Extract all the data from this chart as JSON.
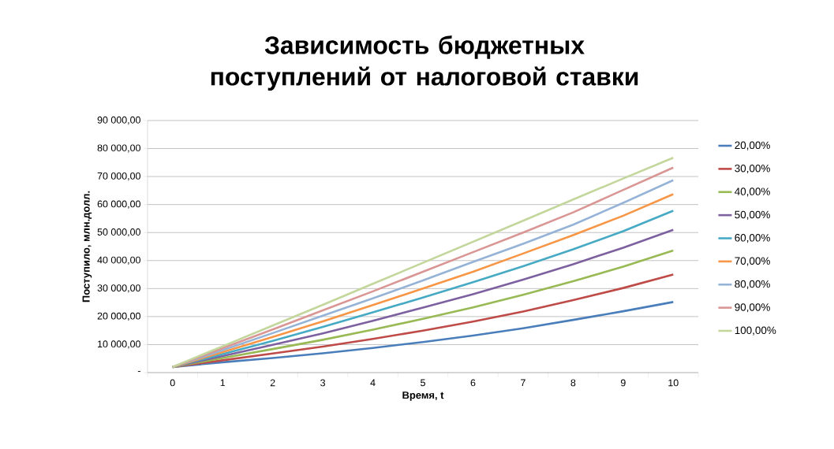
{
  "chart_data": {
    "type": "line",
    "title": "Зависимость бюджетных поступлений от налоговой ставки",
    "xlabel": "Время, t",
    "ylabel": "Поступило, млн.долл.",
    "categories": [
      "0",
      "1",
      "2",
      "3",
      "4",
      "5",
      "6",
      "7",
      "8",
      "9",
      "10"
    ],
    "ylim": [
      0,
      90000
    ],
    "yticks": [
      {
        "value": 0,
        "label": "-"
      },
      {
        "value": 10000,
        "label": "10 000,00"
      },
      {
        "value": 20000,
        "label": "20 000,00"
      },
      {
        "value": 30000,
        "label": "30 000,00"
      },
      {
        "value": 40000,
        "label": "40 000,00"
      },
      {
        "value": 50000,
        "label": "50 000,00"
      },
      {
        "value": 60000,
        "label": "60 000,00"
      },
      {
        "value": 70000,
        "label": "70 000,00"
      },
      {
        "value": 80000,
        "label": "80 000,00"
      },
      {
        "value": 90000,
        "label": "90 000,00"
      }
    ],
    "grid": "y",
    "legend": "right",
    "marker": "none",
    "line_style": "solid",
    "series": [
      {
        "name": "20,00%",
        "color": "#4a7ebb",
        "values": [
          2000,
          3700,
          5200,
          6900,
          8800,
          10900,
          13200,
          15800,
          18800,
          21900,
          25200
        ]
      },
      {
        "name": "30,00%",
        "color": "#be4b48",
        "values": [
          2000,
          4400,
          6800,
          9300,
          12000,
          15000,
          18200,
          21800,
          25900,
          30200,
          35000
        ]
      },
      {
        "name": "40,00%",
        "color": "#98b954",
        "values": [
          2000,
          5200,
          8400,
          11700,
          15300,
          19200,
          23300,
          27800,
          32600,
          37800,
          43600
        ]
      },
      {
        "name": "50,00%",
        "color": "#7d60a0",
        "values": [
          2000,
          5900,
          9900,
          14000,
          18500,
          23200,
          28000,
          33200,
          38700,
          44600,
          51000
        ]
      },
      {
        "name": "60,00%",
        "color": "#46aac5",
        "values": [
          2000,
          6600,
          11300,
          16300,
          21500,
          26800,
          32300,
          38000,
          44000,
          50500,
          57800
        ]
      },
      {
        "name": "70,00%",
        "color": "#f79646",
        "values": [
          2000,
          7300,
          12700,
          18300,
          24100,
          30000,
          36000,
          42500,
          49100,
          56000,
          63700
        ]
      },
      {
        "name": "80,00%",
        "color": "#95b3d7",
        "values": [
          2000,
          8000,
          14100,
          20300,
          26500,
          32900,
          39500,
          46000,
          52800,
          60600,
          68700
        ]
      },
      {
        "name": "90,00%",
        "color": "#d99694",
        "values": [
          2000,
          8700,
          15400,
          22200,
          29000,
          36000,
          43000,
          50000,
          57200,
          65200,
          73200
        ]
      },
      {
        "name": "100,00%",
        "color": "#c3d69b",
        "values": [
          2000,
          9400,
          16800,
          24200,
          31700,
          39200,
          46700,
          54200,
          61800,
          69300,
          76700
        ]
      }
    ]
  }
}
